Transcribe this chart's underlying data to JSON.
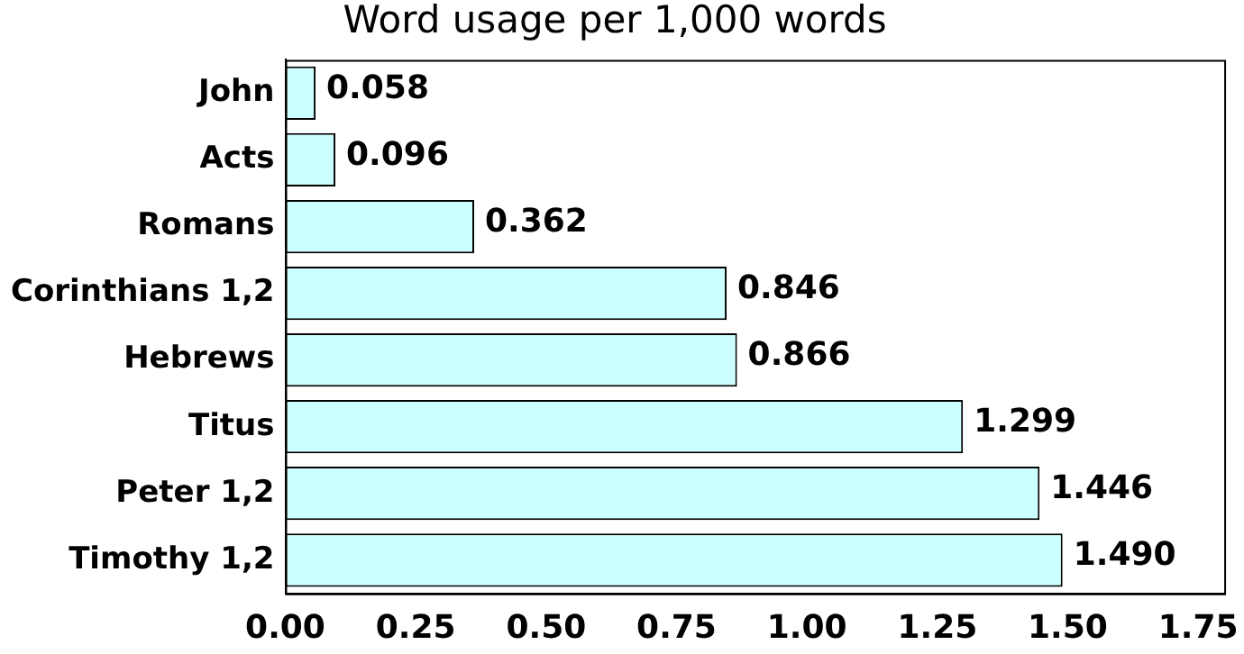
{
  "chart_data": {
    "type": "bar",
    "orientation": "horizontal",
    "title": "Word usage per 1,000 words",
    "categories": [
      "John",
      "Acts",
      "Romans",
      "Corinthians 1,2",
      "Hebrews",
      "Titus",
      "Peter 1,2",
      "Timothy 1,2"
    ],
    "values": [
      0.058,
      0.096,
      0.362,
      0.846,
      0.866,
      1.299,
      1.446,
      1.49
    ],
    "color": "#ccffff",
    "xlim": [
      0,
      1.8
    ],
    "xticks": [
      {
        "value": 0,
        "label": "0.00"
      },
      0.25,
      {
        "value": 0.5,
        "label": "0.50"
      },
      0.75,
      {
        "value": 1,
        "label": "1.00"
      },
      1.25,
      {
        "value": 1.5,
        "label": "1.50"
      },
      1.75
    ],
    "value_labels": [
      "0.058",
      "0.096",
      "0.362",
      "0.846",
      "0.866",
      "1.299",
      "1.446",
      "1.490"
    ],
    "grid": false,
    "legend": false
  }
}
